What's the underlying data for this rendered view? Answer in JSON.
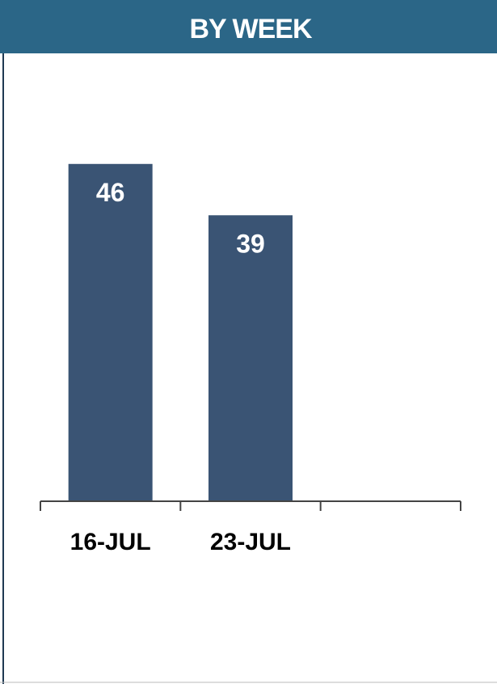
{
  "chart_data": {
    "type": "bar",
    "title": "BY WEEK",
    "categories": [
      "16-JUL",
      "23-JUL",
      null
    ],
    "values": [
      46,
      39,
      null
    ],
    "color": "#3a5474"
  }
}
